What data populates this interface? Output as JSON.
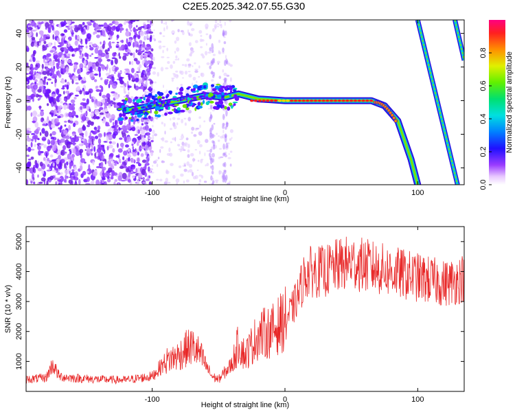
{
  "title": "C2E5.2025.342.07.55.G30",
  "chart_data": [
    {
      "type": "heatmap",
      "xlabel": "Height of straight line (km)",
      "ylabel": "Frequency (Hz)",
      "xlim": [
        -195,
        135
      ],
      "ylim": [
        -50,
        48
      ],
      "xticks": [
        -100,
        0,
        100
      ],
      "xtick_labels": [
        "-100",
        "0",
        "100"
      ],
      "yticks": [
        -40,
        -20,
        0,
        20,
        40
      ],
      "ytick_labels": [
        "-40",
        "-20",
        "0",
        "20",
        "40"
      ],
      "colorbar": {
        "label": "Normalized spectral amplitude",
        "range": [
          0,
          1
        ],
        "ticks": [
          0.0,
          0.2,
          0.4,
          0.6,
          0.8
        ],
        "tick_labels": [
          "0.0",
          "0.2",
          "0.4",
          "0.6",
          "0.8"
        ]
      },
      "main_trace": [
        {
          "x": -120,
          "y": -6
        },
        {
          "x": -100,
          "y": -3
        },
        {
          "x": -80,
          "y": 0
        },
        {
          "x": -60,
          "y": 3
        },
        {
          "x": -45,
          "y": 2
        },
        {
          "x": -35,
          "y": 4
        },
        {
          "x": -20,
          "y": 1
        },
        {
          "x": 0,
          "y": 0
        },
        {
          "x": 40,
          "y": 0
        },
        {
          "x": 65,
          "y": 0
        },
        {
          "x": 75,
          "y": -3
        },
        {
          "x": 85,
          "y": -12
        },
        {
          "x": 95,
          "y": -35
        },
        {
          "x": 100,
          "y": -50
        }
      ],
      "aliased_traces": [
        [
          {
            "x": 100,
            "y": 48
          },
          {
            "x": 130,
            "y": -50
          }
        ],
        [
          {
            "x": 128,
            "y": 48
          },
          {
            "x": 135,
            "y": 24
          }
        ]
      ]
    },
    {
      "type": "line",
      "xlabel": "Height of straight line (km)",
      "ylabel": "SNR (10 * v/v)",
      "xlim": [
        -195,
        135
      ],
      "ylim": [
        0,
        5500
      ],
      "xticks": [
        -100,
        0,
        100
      ],
      "xtick_labels": [
        "-100",
        "0",
        "100"
      ],
      "yticks": [
        1000,
        2000,
        3000,
        4000,
        5000
      ],
      "ytick_labels": [
        "1000",
        "2000",
        "3000",
        "4000",
        "5000"
      ],
      "color": "#e82828",
      "series": [
        {
          "name": "SNR",
          "x": [
            -195,
            -180,
            -175,
            -170,
            -160,
            -140,
            -120,
            -100,
            -90,
            -80,
            -75,
            -70,
            -65,
            -60,
            -55,
            -50,
            -40,
            -35,
            -30,
            -20,
            -10,
            0,
            5,
            10,
            15,
            20,
            30,
            40,
            50,
            60,
            70,
            80,
            90,
            100,
            110,
            120,
            130,
            135
          ],
          "values": [
            400,
            450,
            900,
            500,
            450,
            400,
            380,
            500,
            1000,
            1200,
            1400,
            1500,
            1300,
            900,
            500,
            400,
            900,
            1600,
            1200,
            1900,
            2000,
            2400,
            2700,
            3200,
            3900,
            4000,
            4000,
            4200,
            4300,
            4200,
            4100,
            4000,
            3900,
            3800,
            3700,
            3600,
            3700,
            3800
          ]
        }
      ]
    }
  ]
}
